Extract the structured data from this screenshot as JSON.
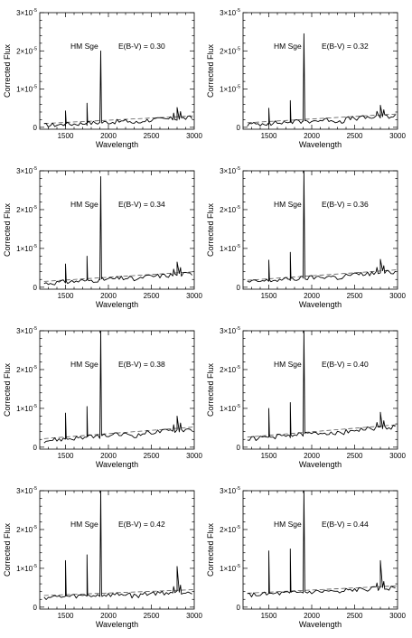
{
  "chart_data": [
    {
      "type": "line",
      "object": "HM Sge",
      "ebv_label": "E(B-V) = 0.30",
      "xlabel": "Wavelength",
      "ylabel": "Corrected Flux",
      "xlim": [
        1200,
        3000
      ],
      "ylim": [
        -0.05,
        3.0
      ],
      "y_unit_exp": "-5",
      "xticks": [
        "1500",
        "2000",
        "2500",
        "3000"
      ],
      "yticks": [
        "0",
        "1×10",
        "2×10",
        "3×10"
      ],
      "continuum": [
        [
          1250,
          0.1
        ],
        [
          3000,
          0.3
        ]
      ],
      "line_peaks": {
        "1500": 0.43,
        "1750": 0.63,
        "1910": 2.0,
        "2800": 0.52
      }
    },
    {
      "type": "line",
      "object": "HM Sge",
      "ebv_label": "E(B-V) = 0.32",
      "xlabel": "Wavelength",
      "ylabel": "Corrected Flux",
      "xlim": [
        1200,
        3000
      ],
      "ylim": [
        -0.05,
        3.0
      ],
      "y_unit_exp": "-5",
      "xticks": [
        "1500",
        "2000",
        "2500",
        "3000"
      ],
      "yticks": [
        "0",
        "1×10",
        "2×10",
        "3×10"
      ],
      "continuum": [
        [
          1250,
          0.12
        ],
        [
          3000,
          0.35
        ]
      ],
      "line_peaks": {
        "1500": 0.5,
        "1750": 0.7,
        "1910": 2.45,
        "2800": 0.58
      }
    },
    {
      "type": "line",
      "object": "HM Sge",
      "ebv_label": "E(B-V) = 0.34",
      "xlabel": "Wavelength",
      "ylabel": "Corrected Flux",
      "xlim": [
        1200,
        3000
      ],
      "ylim": [
        -0.05,
        3.0
      ],
      "y_unit_exp": "-5",
      "xticks": [
        "1500",
        "2000",
        "2500",
        "3000"
      ],
      "yticks": [
        "0",
        "1×10",
        "2×10",
        "3×10"
      ],
      "continuum": [
        [
          1250,
          0.15
        ],
        [
          3000,
          0.4
        ]
      ],
      "line_peaks": {
        "1500": 0.6,
        "1750": 0.8,
        "1910": 2.85,
        "2800": 0.65
      }
    },
    {
      "type": "line",
      "object": "HM Sge",
      "ebv_label": "E(B-V) = 0.36",
      "xlabel": "Wavelength",
      "ylabel": "Corrected Flux",
      "xlim": [
        1200,
        3000
      ],
      "ylim": [
        -0.05,
        3.0
      ],
      "y_unit_exp": "-5",
      "xticks": [
        "1500",
        "2000",
        "2500",
        "3000"
      ],
      "yticks": [
        "0",
        "1×10",
        "2×10",
        "3×10"
      ],
      "continuum": [
        [
          1250,
          0.18
        ],
        [
          3000,
          0.45
        ]
      ],
      "line_peaks": {
        "1500": 0.7,
        "1750": 0.9,
        "1910": 3.0,
        "2800": 0.72
      }
    },
    {
      "type": "line",
      "object": "HM Sge",
      "ebv_label": "E(B-V) = 0.38",
      "xlabel": "Wavelength",
      "ylabel": "Corrected Flux",
      "xlim": [
        1200,
        3000
      ],
      "ylim": [
        -0.05,
        3.0
      ],
      "y_unit_exp": "-5",
      "xticks": [
        "1500",
        "2000",
        "2500",
        "3000"
      ],
      "yticks": [
        "0",
        "1×10",
        "2×10",
        "3×10"
      ],
      "continuum": [
        [
          1250,
          0.22
        ],
        [
          3000,
          0.52
        ]
      ],
      "line_peaks": {
        "1500": 0.88,
        "1750": 1.05,
        "1910": 3.0,
        "2800": 0.8
      }
    },
    {
      "type": "line",
      "object": "HM Sge",
      "ebv_label": "E(B-V) = 0.40",
      "xlabel": "Wavelength",
      "ylabel": "Corrected Flux",
      "xlim": [
        1200,
        3000
      ],
      "ylim": [
        -0.05,
        3.0
      ],
      "y_unit_exp": "-5",
      "xticks": [
        "1500",
        "2000",
        "2500",
        "3000"
      ],
      "yticks": [
        "0",
        "1×10",
        "2×10",
        "3×10"
      ],
      "continuum": [
        [
          1250,
          0.26
        ],
        [
          3000,
          0.58
        ]
      ],
      "line_peaks": {
        "1500": 1.0,
        "1750": 1.15,
        "1910": 3.0,
        "2800": 0.9
      }
    },
    {
      "type": "line",
      "object": "HM Sge",
      "ebv_label": "E(B-V) = 0.42",
      "xlabel": "Wavelength",
      "ylabel": "Corrected Flux",
      "xlim": [
        1200,
        3000
      ],
      "ylim": [
        -0.05,
        3.0
      ],
      "y_unit_exp": "-5",
      "xticks": [
        "1500",
        "2000",
        "2500",
        "3000"
      ],
      "yticks": [
        "0",
        "1×10",
        "2×10",
        "3×10"
      ],
      "continuum": [
        [
          1250,
          0.3
        ],
        [
          3000,
          0.45
        ]
      ],
      "line_peaks": {
        "1500": 1.2,
        "1750": 1.35,
        "1910": 3.0,
        "2800": 1.05
      }
    },
    {
      "type": "line",
      "object": "HM Sge",
      "ebv_label": "E(B-V) = 0.44",
      "xlabel": "Wavelength",
      "ylabel": "Corrected Flux",
      "xlim": [
        1200,
        3000
      ],
      "ylim": [
        -0.05,
        3.0
      ],
      "y_unit_exp": "-5",
      "xticks": [
        "1500",
        "2000",
        "2500",
        "3000"
      ],
      "yticks": [
        "0",
        "1×10",
        "2×10",
        "3×10"
      ],
      "continuum": [
        [
          1250,
          0.36
        ],
        [
          3000,
          0.55
        ]
      ],
      "line_peaks": {
        "1500": 1.45,
        "1750": 1.5,
        "1910": 3.0,
        "2800": 1.2
      }
    }
  ]
}
